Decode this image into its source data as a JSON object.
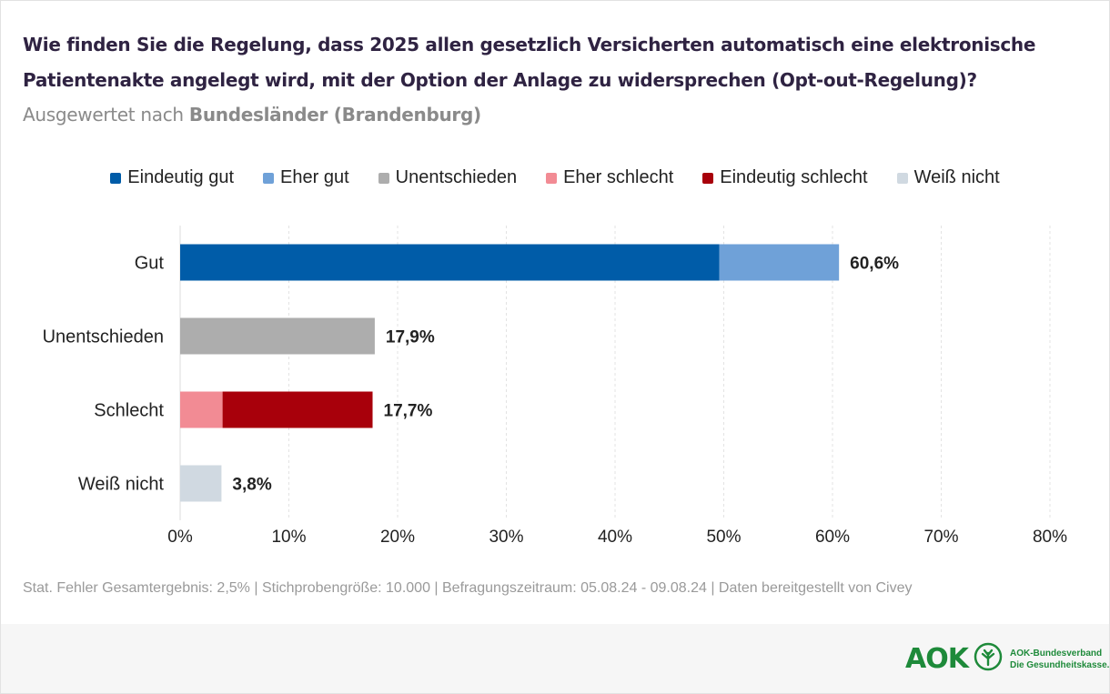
{
  "title": {
    "main": "Wie finden Sie die Regelung, dass 2025 allen gesetzlich Versicherten automatisch eine elektronische Patientenakte angelegt wird, mit der Option der Anlage zu widersprechen (Opt-out-Regelung)?",
    "sub_prefix": " Ausgewertet nach ",
    "sub_bold": "Bundesländer (Brandenburg)"
  },
  "legend": [
    {
      "label": "Eindeutig gut",
      "color": "#005ca8"
    },
    {
      "label": "Eher gut",
      "color": "#6fa1d8"
    },
    {
      "label": "Unentschieden",
      "color": "#adadad"
    },
    {
      "label": "Eher schlecht",
      "color": "#f28b94"
    },
    {
      "label": "Eindeutig schlecht",
      "color": "#a8000b"
    },
    {
      "label": "Weiß nicht",
      "color": "#d0d9e1"
    }
  ],
  "chart_data": {
    "type": "bar",
    "orientation": "horizontal",
    "stacked": true,
    "categories": [
      "Gut",
      "Unentschieden",
      "Schlecht",
      "Weiß nicht"
    ],
    "series": [
      {
        "name": "Eindeutig gut",
        "color": "#005ca8",
        "values": [
          49.6,
          0,
          0,
          0
        ]
      },
      {
        "name": "Eher gut",
        "color": "#6fa1d8",
        "values": [
          11.0,
          0,
          0,
          0
        ]
      },
      {
        "name": "Unentschieden",
        "color": "#adadad",
        "values": [
          0,
          17.9,
          0,
          0
        ]
      },
      {
        "name": "Eher schlecht",
        "color": "#f28b94",
        "values": [
          0,
          0,
          3.9,
          0
        ]
      },
      {
        "name": "Eindeutig schlecht",
        "color": "#a8000b",
        "values": [
          0,
          0,
          13.8,
          0
        ]
      },
      {
        "name": "Weiß nicht",
        "color": "#d0d9e1",
        "values": [
          0,
          0,
          0,
          3.8
        ]
      }
    ],
    "totals": [
      "60,6%",
      "17,9%",
      "17,7%",
      "3,8%"
    ],
    "xlim": [
      0,
      80
    ],
    "xticks": [
      "0%",
      "10%",
      "20%",
      "30%",
      "40%",
      "50%",
      "60%",
      "70%",
      "80%"
    ],
    "grid": true,
    "legend_position": "top"
  },
  "footer": {
    "note": "Stat. Fehler Gesamtergebnis: 2,5% | Stichprobengröße: 10.000 | Befragungszeitraum: 05.08.24 - 09.08.24 | Daten bereitgestellt von Civey",
    "logo_word": "AOK",
    "logo_line1": "AOK-Bundesverband",
    "logo_line2": "Die Gesundheitskasse."
  }
}
